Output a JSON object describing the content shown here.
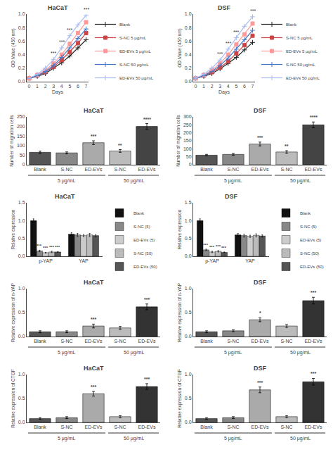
{
  "chart_data": [
    {
      "type": "line",
      "title": "HaCaT",
      "x_label": "Days",
      "y_label": "OD Value (450 nm)",
      "x": [
        0,
        1,
        2,
        3,
        4,
        5,
        6,
        7
      ],
      "series": [
        {
          "name": "Blank",
          "color": "#222222",
          "marker": "plus",
          "values": [
            0.05,
            0.08,
            0.12,
            0.2,
            0.28,
            0.38,
            0.5,
            0.62
          ]
        },
        {
          "name": "S-NC 5 μg/mL",
          "color": "#cc4444",
          "marker": "square",
          "values": [
            0.05,
            0.09,
            0.14,
            0.22,
            0.32,
            0.44,
            0.57,
            0.72
          ]
        },
        {
          "name": "ED-EVs 5 μg/mL",
          "color": "#ff9999",
          "marker": "square",
          "values": [
            0.05,
            0.1,
            0.17,
            0.27,
            0.4,
            0.56,
            0.72,
            0.88
          ]
        },
        {
          "name": "S-NC 50 μg/mL",
          "color": "#4477cc",
          "marker": "plus",
          "values": [
            0.05,
            0.09,
            0.15,
            0.24,
            0.36,
            0.5,
            0.64,
            0.78
          ]
        },
        {
          "name": "ED-EVs 50 μg/mL",
          "color": "#aabbee",
          "marker": "plus",
          "values": [
            0.05,
            0.11,
            0.2,
            0.33,
            0.5,
            0.68,
            0.84,
            0.98
          ]
        }
      ],
      "xlim": [
        -0.3,
        7.3
      ],
      "xticks": [
        0,
        1,
        2,
        3,
        4,
        5,
        6,
        7
      ],
      "ylim": [
        0,
        1
      ],
      "yticks": [
        {
          "value": 0,
          "label": "0.0"
        },
        0.2,
        0.4,
        0.6,
        0.8,
        {
          "value": 1,
          "label": "1.0"
        }
      ],
      "grid": false,
      "legend": "right",
      "annotations": [
        {
          "text": "***",
          "x": 3
        },
        {
          "text": "***",
          "x": 4
        },
        {
          "text": "***",
          "x": 5
        },
        {
          "text": "***",
          "x": 7
        }
      ]
    },
    {
      "type": "line",
      "title": "DSF",
      "x_label": "Days",
      "y_label": "OD Value (450 nm)",
      "x": [
        0,
        1,
        2,
        3,
        4,
        5,
        6,
        7
      ],
      "series": [
        {
          "name": "Blank",
          "color": "#222222",
          "marker": "plus",
          "values": [
            0.05,
            0.08,
            0.12,
            0.19,
            0.27,
            0.36,
            0.47,
            0.58
          ]
        },
        {
          "name": "S-NC 5 μg/mL",
          "color": "#cc4444",
          "marker": "square",
          "values": [
            0.05,
            0.09,
            0.14,
            0.21,
            0.3,
            0.42,
            0.54,
            0.68
          ]
        },
        {
          "name": "ED-EVs 5 μg/mL",
          "color": "#ff9999",
          "marker": "square",
          "values": [
            0.05,
            0.1,
            0.17,
            0.27,
            0.4,
            0.55,
            0.7,
            0.86
          ]
        },
        {
          "name": "S-NC 50 μg/mL",
          "color": "#4477cc",
          "marker": "plus",
          "values": [
            0.05,
            0.09,
            0.15,
            0.24,
            0.35,
            0.48,
            0.62,
            0.76
          ]
        },
        {
          "name": "ED-EVs 50 μg/mL",
          "color": "#aabbee",
          "marker": "plus",
          "values": [
            0.05,
            0.11,
            0.2,
            0.32,
            0.48,
            0.65,
            0.82,
            0.96
          ]
        }
      ],
      "xlim": [
        -0.3,
        7.3
      ],
      "xticks": [
        0,
        1,
        2,
        3,
        4,
        5,
        6,
        7
      ],
      "ylim": [
        0,
        1
      ],
      "yticks": [
        {
          "value": 0,
          "label": "0.0"
        },
        0.2,
        0.4,
        0.6,
        0.8,
        {
          "value": 1,
          "label": "1.0"
        }
      ],
      "grid": false,
      "legend": "right",
      "annotations": [
        {
          "text": "***",
          "x": 3
        },
        {
          "text": "***",
          "x": 4
        },
        {
          "text": "***",
          "x": 5
        },
        {
          "text": "***",
          "x": 7
        }
      ]
    },
    {
      "type": "bar",
      "title": "HaCaT",
      "y_label": "Number of migration cells",
      "categories": [
        "Blank",
        "S-NC",
        "ED-EVs",
        "S-NC",
        "ED-EVs"
      ],
      "values": [
        65,
        62,
        115,
        72,
        200
      ],
      "errors": [
        6,
        5,
        10,
        7,
        15
      ],
      "colors": [
        "#555555",
        "#888888",
        "#aaaaaa",
        "#bbbbbb",
        "#444444"
      ],
      "ylim": [
        0,
        250
      ],
      "yticks": [
        0,
        50,
        100,
        150,
        200,
        250
      ],
      "grid": false,
      "annotations": [
        {
          "text": "***",
          "x": 2
        },
        {
          "text": "**",
          "x": 3
        },
        {
          "text": "****",
          "x": 4
        },
        {
          "text": "5 μg/mL",
          "x": [
            0,
            2
          ]
        },
        {
          "text": "50 μg/mL",
          "x": [
            3,
            4
          ]
        }
      ]
    },
    {
      "type": "bar",
      "title": "DSF",
      "y_label": "Number of migration cells",
      "categories": [
        "Blank",
        "S-NC",
        "ED-EVs",
        "S-NC",
        "ED-EVs"
      ],
      "values": [
        60,
        65,
        130,
        80,
        250
      ],
      "errors": [
        5,
        6,
        12,
        8,
        18
      ],
      "colors": [
        "#555555",
        "#888888",
        "#aaaaaa",
        "#bbbbbb",
        "#444444"
      ],
      "ylim": [
        0,
        300
      ],
      "yticks": [
        0,
        50,
        100,
        150,
        200,
        250,
        300
      ],
      "grid": false,
      "annotations": [
        {
          "text": "***",
          "x": 2
        },
        {
          "text": "**",
          "x": 3
        },
        {
          "text": "****",
          "x": 4
        },
        {
          "text": "5 μg/mL",
          "x": [
            0,
            2
          ]
        },
        {
          "text": "50 μg/mL",
          "x": [
            3,
            4
          ]
        }
      ]
    },
    {
      "type": "bar",
      "title": "HaCaT",
      "y_label": "Relative expression",
      "categories": [
        "p-YAP",
        "YAP"
      ],
      "series": [
        {
          "name": "Blank",
          "color": "#111111",
          "values": [
            1.0,
            0.62
          ],
          "errors": [
            0.05,
            0.04
          ]
        },
        {
          "name": "S-NC (5)",
          "color": "#888888",
          "values": [
            0.15,
            0.6
          ],
          "errors": [
            0.02,
            0.04
          ]
        },
        {
          "name": "ED-EVs (5)",
          "color": "#cccccc",
          "values": [
            0.1,
            0.58
          ],
          "errors": [
            0.01,
            0.03
          ]
        },
        {
          "name": "S-NC (50)",
          "color": "#bbbbbb",
          "values": [
            0.12,
            0.6
          ],
          "errors": [
            0.02,
            0.04
          ]
        },
        {
          "name": "ED-EVs (50)",
          "color": "#555555",
          "values": [
            0.12,
            0.58
          ],
          "errors": [
            0.01,
            0.03
          ]
        }
      ],
      "ylim": [
        0,
        1.5
      ],
      "yticks": [
        {
          "value": 0,
          "label": "0.0"
        },
        0.5,
        {
          "value": 1,
          "label": "1.0"
        },
        1.5
      ],
      "grid": false,
      "legend": "right",
      "annotations": [
        {
          "text": "***",
          "x": 0,
          "series": "S-NC (5)"
        },
        {
          "text": "***",
          "x": 0,
          "series": "ED-EVs (5)"
        },
        {
          "text": "***",
          "x": 0,
          "series": "S-NC (50)"
        },
        {
          "text": "***",
          "x": 0,
          "series": "ED-EVs (50)"
        }
      ]
    },
    {
      "type": "bar",
      "title": "DSF",
      "y_label": "Relative expression",
      "categories": [
        "p-YAP",
        "YAP"
      ],
      "series": [
        {
          "name": "Blank",
          "color": "#111111",
          "values": [
            1.0,
            0.6
          ],
          "errors": [
            0.05,
            0.04
          ]
        },
        {
          "name": "S-NC (5)",
          "color": "#888888",
          "values": [
            0.18,
            0.58
          ],
          "errors": [
            0.02,
            0.04
          ]
        },
        {
          "name": "ED-EVs (5)",
          "color": "#cccccc",
          "values": [
            0.12,
            0.56
          ],
          "errors": [
            0.02,
            0.03
          ]
        },
        {
          "name": "S-NC (50)",
          "color": "#bbbbbb",
          "values": [
            0.14,
            0.59
          ],
          "errors": [
            0.02,
            0.04
          ]
        },
        {
          "name": "ED-EVs (50)",
          "color": "#555555",
          "values": [
            0.11,
            0.57
          ],
          "errors": [
            0.01,
            0.03
          ]
        }
      ],
      "ylim": [
        0,
        1.5
      ],
      "yticks": [
        {
          "value": 0,
          "label": "0.0"
        },
        0.5,
        {
          "value": 1,
          "label": "1.0"
        },
        1.5
      ],
      "grid": false,
      "legend": "right",
      "annotations": [
        {
          "text": "***",
          "x": 0,
          "series": "S-NC (5)"
        },
        {
          "text": "***",
          "x": 0,
          "series": "ED-EVs (5)"
        },
        {
          "text": "***",
          "x": 0,
          "series": "S-NC (50)"
        },
        {
          "text": "***",
          "x": 0,
          "series": "ED-EVs (50)"
        }
      ]
    },
    {
      "type": "bar",
      "title": "HaCaT",
      "y_label": "Relative expression of n-YAP",
      "categories": [
        "Blank",
        "S-NC",
        "ED-EVs",
        "S-NC",
        "ED-EVs"
      ],
      "values": [
        0.1,
        0.1,
        0.22,
        0.18,
        0.62
      ],
      "errors": [
        0.02,
        0.02,
        0.04,
        0.03,
        0.06
      ],
      "colors": [
        "#555555",
        "#888888",
        "#aaaaaa",
        "#bbbbbb",
        "#333333"
      ],
      "ylim": [
        0,
        1
      ],
      "yticks": [
        {
          "value": 0,
          "label": "0.0"
        },
        0.5,
        {
          "value": 1,
          "label": "1.0"
        }
      ],
      "grid": false,
      "annotations": [
        {
          "text": "***",
          "x": 2
        },
        {
          "text": "***",
          "x": 4
        },
        {
          "text": "5 μg/mL",
          "x": [
            0,
            2
          ]
        },
        {
          "text": "50 μg/mL",
          "x": [
            3,
            4
          ]
        }
      ]
    },
    {
      "type": "bar",
      "title": "DSF",
      "y_label": "Relative expression of n-YAP",
      "categories": [
        "Blank",
        "S-NC",
        "ED-EVs",
        "S-NC",
        "ED-EVs"
      ],
      "values": [
        0.1,
        0.12,
        0.35,
        0.22,
        0.75
      ],
      "errors": [
        0.02,
        0.02,
        0.04,
        0.03,
        0.07
      ],
      "colors": [
        "#555555",
        "#888888",
        "#aaaaaa",
        "#bbbbbb",
        "#333333"
      ],
      "ylim": [
        0,
        1
      ],
      "yticks": [
        {
          "value": 0,
          "label": "0.0"
        },
        0.5,
        {
          "value": 1,
          "label": "1.0"
        }
      ],
      "grid": false,
      "annotations": [
        {
          "text": "*",
          "x": 2
        },
        {
          "text": "***",
          "x": 4
        },
        {
          "text": "5 μg/mL",
          "x": [
            0,
            2
          ]
        },
        {
          "text": "50 μg/mL",
          "x": [
            3,
            4
          ]
        }
      ]
    },
    {
      "type": "bar",
      "title": "HaCaT",
      "y_label": "Relative expression of CTGF",
      "categories": [
        "Blank",
        "S-NC",
        "ED-EVs",
        "S-NC",
        "ED-EVs"
      ],
      "values": [
        0.08,
        0.1,
        0.6,
        0.12,
        0.75
      ],
      "errors": [
        0.02,
        0.02,
        0.05,
        0.02,
        0.06
      ],
      "colors": [
        "#555555",
        "#888888",
        "#aaaaaa",
        "#bbbbbb",
        "#333333"
      ],
      "ylim": [
        0,
        1
      ],
      "yticks": [
        {
          "value": 0,
          "label": "0.0"
        },
        0.5,
        {
          "value": 1,
          "label": "1.0"
        }
      ],
      "grid": false,
      "annotations": [
        {
          "text": "***",
          "x": 2
        },
        {
          "text": "***",
          "x": 4
        },
        {
          "text": "5 μg/mL",
          "x": [
            0,
            2
          ]
        },
        {
          "text": "50 μg/mL",
          "x": [
            3,
            4
          ]
        }
      ]
    },
    {
      "type": "bar",
      "title": "DSF",
      "y_label": "Relative expression of CTGF",
      "categories": [
        "Blank",
        "S-NC",
        "ED-EVs",
        "S-NC",
        "ED-EVs"
      ],
      "values": [
        0.08,
        0.1,
        0.68,
        0.12,
        0.85
      ],
      "errors": [
        0.02,
        0.02,
        0.06,
        0.02,
        0.07
      ],
      "colors": [
        "#555555",
        "#888888",
        "#aaaaaa",
        "#bbbbbb",
        "#333333"
      ],
      "ylim": [
        0,
        1
      ],
      "yticks": [
        {
          "value": 0,
          "label": "0.0"
        },
        0.5,
        {
          "value": 1,
          "label": "1.0"
        }
      ],
      "grid": false,
      "annotations": [
        {
          "text": "***",
          "x": 2
        },
        {
          "text": "***",
          "x": 4
        },
        {
          "text": "5 μg/mL",
          "x": [
            0,
            2
          ]
        },
        {
          "text": "50 μg/mL",
          "x": [
            3,
            4
          ]
        }
      ]
    }
  ]
}
